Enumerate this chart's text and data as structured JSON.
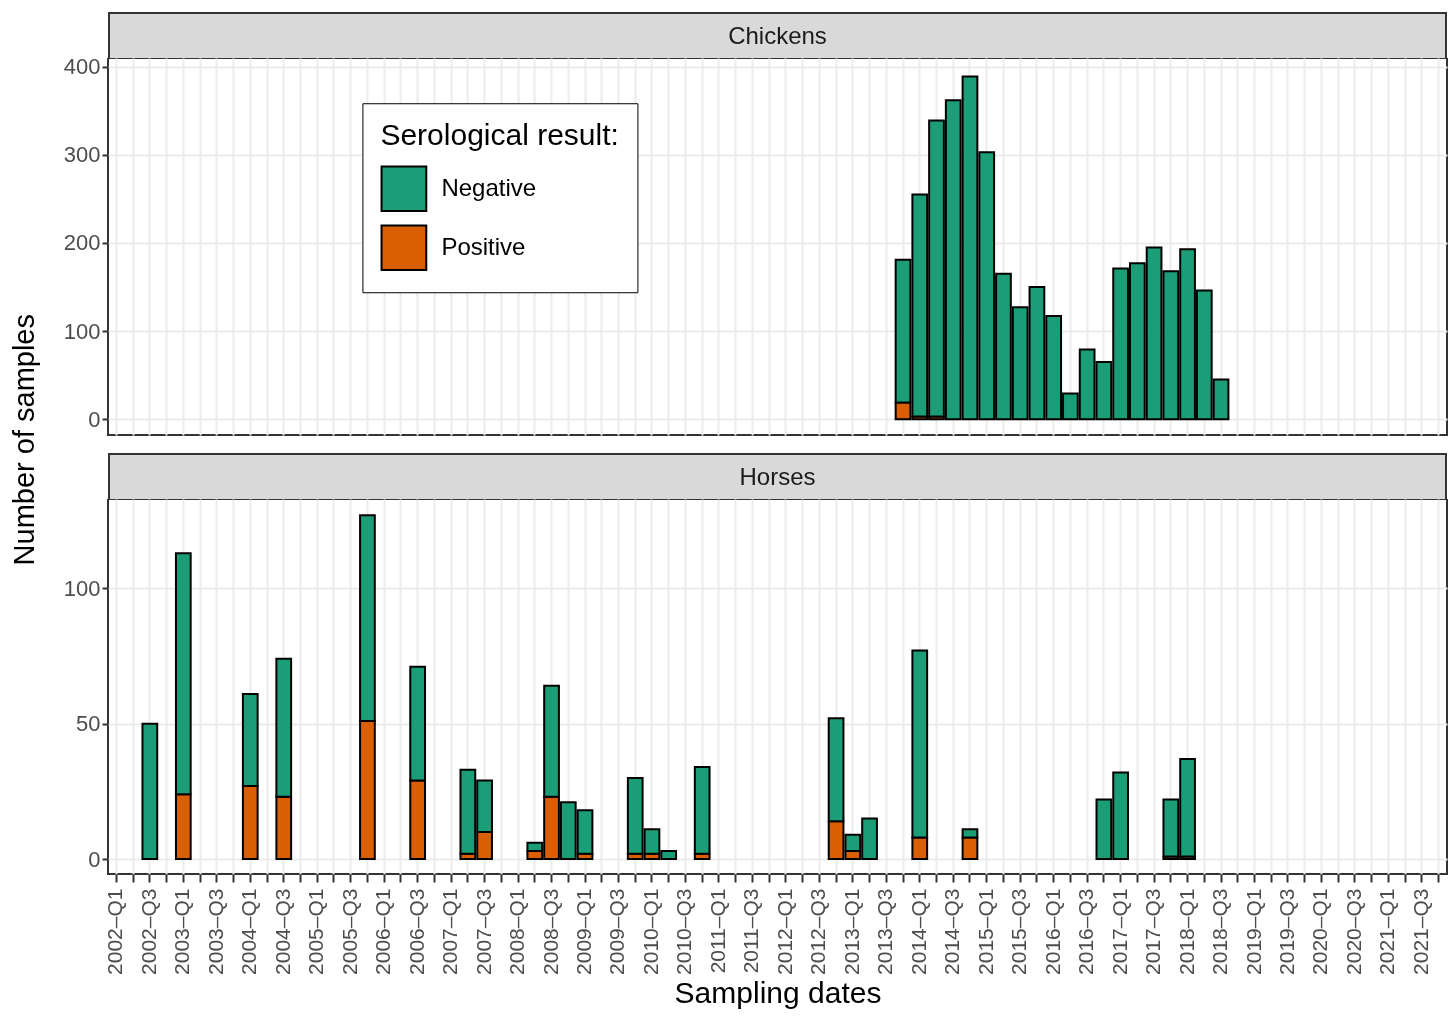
{
  "chart_data": [
    {
      "type": "bar",
      "title": "Chickens",
      "ylabel": "Number of samples",
      "legend_title": "Serological result:",
      "stacked": true,
      "grid": true,
      "legend": "top left",
      "tick_labels": "y",
      "categories": [
        null,
        null,
        null,
        null,
        null,
        null,
        null,
        null,
        null,
        null,
        null,
        null,
        null,
        null,
        null,
        null,
        null,
        null,
        null,
        null,
        null,
        null,
        null,
        null,
        null,
        null,
        null,
        null,
        null,
        null,
        null,
        null,
        null,
        null,
        null,
        null,
        null,
        null,
        null,
        null,
        null,
        null,
        null,
        null,
        null,
        null,
        null,
        null,
        null,
        null,
        null,
        null,
        null,
        null,
        null,
        null,
        null,
        null,
        null,
        null,
        null,
        null,
        null,
        null,
        null,
        null,
        null,
        null,
        null,
        null,
        null,
        null,
        null,
        null,
        null,
        null,
        null,
        null,
        null,
        null
      ],
      "ylim": [
        -18,
        410
      ],
      "yticks": [
        0,
        100,
        200,
        300,
        400
      ],
      "series": [
        {
          "name": "Positive",
          "color": "#d95f02",
          "values": [
            0,
            0,
            0,
            0,
            0,
            0,
            0,
            0,
            0,
            0,
            0,
            0,
            0,
            0,
            0,
            0,
            0,
            0,
            0,
            0,
            0,
            0,
            0,
            0,
            0,
            0,
            0,
            0,
            0,
            0,
            0,
            0,
            0,
            0,
            0,
            0,
            0,
            0,
            0,
            0,
            0,
            0,
            0,
            0,
            0,
            0,
            0,
            19,
            3,
            3,
            0,
            0,
            0,
            0,
            0,
            0,
            0,
            0,
            0,
            0,
            0,
            0,
            0,
            0,
            0,
            0,
            0,
            0,
            0,
            0,
            0,
            0,
            0,
            0,
            0,
            0,
            0,
            0,
            0,
            0
          ]
        },
        {
          "name": "Negative",
          "color": "#1b9e77",
          "values": [
            0,
            0,
            0,
            0,
            0,
            0,
            0,
            0,
            0,
            0,
            0,
            0,
            0,
            0,
            0,
            0,
            0,
            0,
            0,
            0,
            0,
            0,
            0,
            0,
            0,
            0,
            0,
            0,
            0,
            0,
            0,
            0,
            0,
            0,
            0,
            0,
            0,
            0,
            0,
            0,
            0,
            0,
            0,
            0,
            0,
            0,
            0,
            162,
            252,
            336,
            362,
            389,
            303,
            165,
            127,
            150,
            117,
            29,
            79,
            65,
            171,
            177,
            195,
            168,
            193,
            146,
            45,
            0,
            0,
            0,
            0,
            0,
            0,
            0,
            0,
            0,
            0,
            0,
            0,
            0
          ]
        }
      ]
    },
    {
      "type": "bar",
      "title": "Horses",
      "xlabel": "Sampling dates",
      "stacked": true,
      "grid": true,
      "categories": [
        "2002–Q1",
        null,
        "2002–Q3",
        null,
        "2003–Q1",
        null,
        "2003–Q3",
        null,
        "2004–Q1",
        null,
        "2004–Q3",
        null,
        "2005–Q1",
        null,
        "2005–Q3",
        null,
        "2006–Q1",
        null,
        "2006–Q3",
        null,
        "2007–Q1",
        null,
        "2007–Q3",
        null,
        "2008–Q1",
        null,
        "2008–Q3",
        null,
        "2009–Q1",
        null,
        "2009–Q3",
        null,
        "2010–Q1",
        null,
        "2010–Q3",
        null,
        "2011–Q1",
        null,
        "2011–Q3",
        null,
        "2012–Q1",
        null,
        "2012–Q3",
        null,
        "2013–Q1",
        null,
        "2013–Q3",
        null,
        "2014–Q1",
        null,
        "2014–Q3",
        null,
        "2015–Q1",
        null,
        "2015–Q3",
        null,
        "2016–Q1",
        null,
        "2016–Q3",
        null,
        "2017–Q1",
        null,
        "2017–Q3",
        null,
        "2018–Q1",
        null,
        "2018–Q3",
        null,
        "2019–Q1",
        null,
        "2019–Q3",
        null,
        "2020–Q1",
        null,
        "2020–Q3",
        null,
        "2021–Q1",
        null,
        "2021–Q3",
        null
      ],
      "ylim": [
        -5.5,
        133
      ],
      "yticks": [
        0,
        50,
        100
      ],
      "series": [
        {
          "color": "#d95f02",
          "values": [
            0,
            0,
            0,
            0,
            24,
            0,
            0,
            0,
            27,
            0,
            23,
            0,
            0,
            0,
            0,
            51,
            0,
            0,
            29,
            0,
            0,
            2,
            10,
            0,
            0,
            3,
            23,
            0,
            2,
            0,
            0,
            2,
            2,
            0,
            0,
            2,
            0,
            0,
            0,
            0,
            0,
            0,
            0,
            14,
            3,
            0,
            0,
            0,
            8,
            0,
            0,
            8,
            0,
            0,
            0,
            0,
            0,
            0,
            0,
            0,
            0,
            0,
            0,
            1,
            1,
            0,
            0,
            0,
            0,
            0,
            0,
            0,
            0,
            0,
            0,
            0,
            0,
            0,
            0,
            0
          ]
        },
        {
          "color": "#1b9e77",
          "values": [
            0,
            0,
            50,
            0,
            89,
            0,
            0,
            0,
            34,
            0,
            51,
            0,
            0,
            0,
            0,
            76,
            0,
            0,
            42,
            0,
            0,
            31,
            19,
            0,
            0,
            3,
            41,
            21,
            16,
            0,
            0,
            28,
            9,
            3,
            0,
            32,
            0,
            0,
            0,
            0,
            0,
            0,
            0,
            38,
            6,
            15,
            0,
            0,
            69,
            0,
            0,
            3,
            0,
            0,
            0,
            0,
            0,
            0,
            0,
            22,
            32,
            0,
            0,
            21,
            36,
            0,
            0,
            0,
            0,
            0,
            0,
            0,
            0,
            0,
            0,
            0,
            0,
            0,
            0,
            0
          ]
        }
      ]
    }
  ]
}
